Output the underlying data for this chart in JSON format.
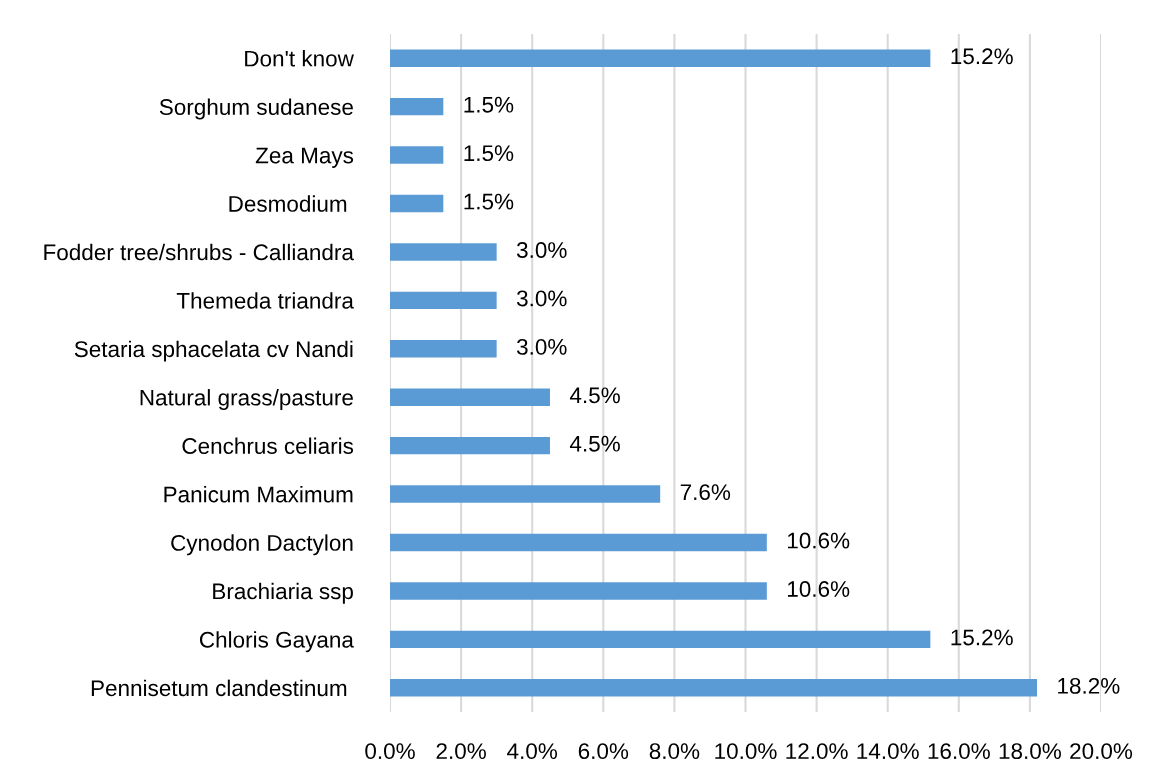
{
  "chart_data": {
    "type": "bar",
    "orientation": "horizontal",
    "categories": [
      "Don't know",
      "Sorghum sudanese",
      "Zea Mays",
      "Desmodium ",
      "Fodder tree/shrubs - Calliandra",
      "Themeda triandra",
      "Setaria sphacelata cv Nandi",
      "Natural grass/pasture",
      "Cenchrus celiaris",
      "Panicum Maximum",
      "Cynodon Dactylon",
      "Brachiaria ssp",
      "Chloris Gayana",
      "Pennisetum clandestinum "
    ],
    "values": [
      15.2,
      1.5,
      1.5,
      1.5,
      3.0,
      3.0,
      3.0,
      4.5,
      4.5,
      7.6,
      10.6,
      10.6,
      15.2,
      18.2
    ],
    "value_labels": [
      "15.2%",
      "1.5%",
      "1.5%",
      "1.5%",
      "3.0%",
      "3.0%",
      "3.0%",
      "4.5%",
      "4.5%",
      "7.6%",
      "10.6%",
      "10.6%",
      "15.2%",
      "18.2%"
    ],
    "color": "#5b9bd5",
    "xlim": [
      0,
      20
    ],
    "xticks": [
      {
        "value": 0,
        "label": "0.0%"
      },
      {
        "value": 2,
        "label": "2.0%"
      },
      {
        "value": 4,
        "label": "4.0%"
      },
      {
        "value": 6,
        "label": "6.0%"
      },
      {
        "value": 8,
        "label": "8.0%"
      },
      {
        "value": 10,
        "label": "10.0%"
      },
      {
        "value": 12,
        "label": "12.0%"
      },
      {
        "value": 14,
        "label": "14.0%"
      },
      {
        "value": 16,
        "label": "16.0%"
      },
      {
        "value": 18,
        "label": "18.0%"
      },
      {
        "value": 20,
        "label": "20.0%"
      }
    ],
    "grid": "x",
    "legend": false
  }
}
